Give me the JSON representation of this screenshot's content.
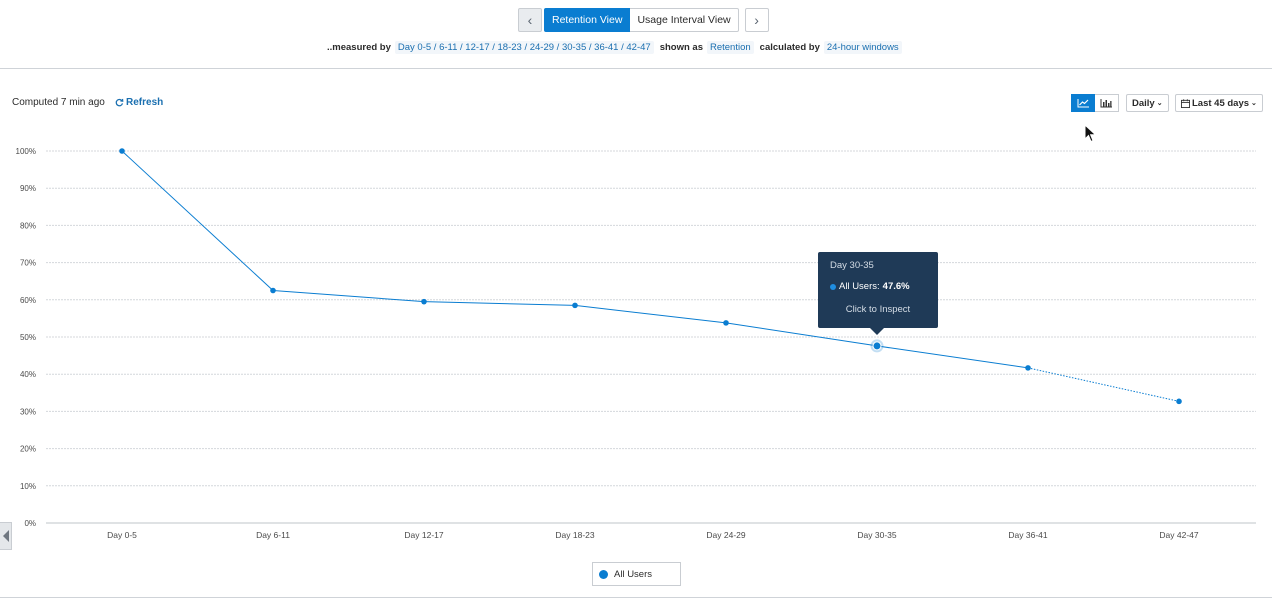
{
  "nav": {
    "prev_icon": "chevron-left-icon",
    "next_icon": "chevron-right-icon",
    "tabs": [
      {
        "label": "Retention View",
        "active": true
      },
      {
        "label": "Usage Interval View",
        "active": false
      }
    ]
  },
  "measure": {
    "measured_by_label": "..measured by",
    "measured_by_value": "Day 0-5 / 6-11 / 12-17 / 18-23 / 24-29 / 30-35 / 36-41 / 42-47",
    "shown_as_label": "shown as",
    "shown_as_value": "Retention",
    "calculated_by_label": "calculated by",
    "calculated_by_value": "24-hour windows"
  },
  "status": {
    "computed": "Computed 7 min ago",
    "refresh": "Refresh"
  },
  "controls": {
    "line_chart_icon": "line-chart-icon",
    "bar_chart_icon": "bar-chart-icon",
    "interval": "Daily",
    "date_range": "Last 45 days",
    "calendar_icon": "calendar-icon"
  },
  "tooltip": {
    "title": "Day 30-35",
    "series_label": "All Users:",
    "value": "47.6%",
    "action": "Click to Inspect"
  },
  "legend": {
    "label": "All Users"
  },
  "colors": {
    "accent": "#0a7dd1",
    "tooltip_bg": "#1f3a57"
  },
  "chart_data": {
    "type": "line",
    "categories": [
      "Day 0-5",
      "Day 6-11",
      "Day 12-17",
      "Day 18-23",
      "Day 24-29",
      "Day 30-35",
      "Day 36-41",
      "Day 42-47"
    ],
    "series": [
      {
        "name": "All Users",
        "values": [
          100,
          62.5,
          59.5,
          58.5,
          53.8,
          47.6,
          41.7,
          32.7
        ],
        "incomplete_from_index": 6
      }
    ],
    "yticks": [
      "0%",
      "10%",
      "20%",
      "30%",
      "40%",
      "50%",
      "60%",
      "70%",
      "80%",
      "90%",
      "100%"
    ],
    "ylim": [
      0,
      100
    ],
    "grid": true,
    "legend_position": "bottom",
    "highlighted_category": "Day 30-35"
  }
}
